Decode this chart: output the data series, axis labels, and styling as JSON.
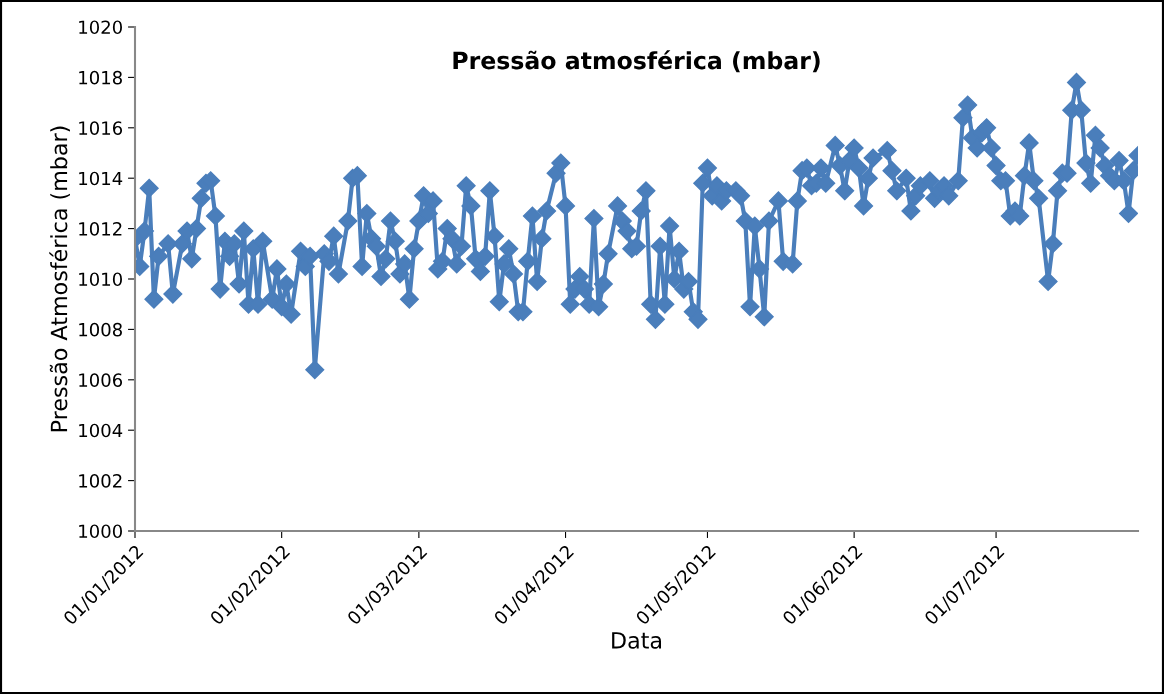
{
  "chart_data": {
    "type": "line",
    "title": "Pressão atmosférica (mbar)",
    "xlabel": "Data",
    "ylabel": "Pressão Atmosférica (mbar)",
    "x": [
      "2012-01-01",
      "2012-01-02",
      "2012-01-03",
      "2012-01-04",
      "2012-01-05",
      "2012-01-06",
      "2012-01-08",
      "2012-01-09",
      "2012-01-11",
      "2012-01-12",
      "2012-01-13",
      "2012-01-14",
      "2012-01-15",
      "2012-01-16",
      "2012-01-17",
      "2012-01-18",
      "2012-01-19",
      "2012-01-20",
      "2012-01-21",
      "2012-01-22",
      "2012-01-23",
      "2012-01-24",
      "2012-01-25",
      "2012-01-26",
      "2012-01-27",
      "2012-01-28",
      "2012-01-30",
      "2012-01-31",
      "2012-02-01",
      "2012-02-02",
      "2012-02-03",
      "2012-02-05",
      "2012-02-06",
      "2012-02-07",
      "2012-02-08",
      "2012-02-10",
      "2012-02-11",
      "2012-02-12",
      "2012-02-13",
      "2012-02-15",
      "2012-02-16",
      "2012-02-17",
      "2012-02-18",
      "2012-02-19",
      "2012-02-20",
      "2012-02-21",
      "2012-02-22",
      "2012-02-23",
      "2012-02-24",
      "2012-02-25",
      "2012-02-26",
      "2012-02-27",
      "2012-02-28",
      "2012-02-29",
      "2012-03-01",
      "2012-03-02",
      "2012-03-03",
      "2012-03-04",
      "2012-03-05",
      "2012-03-06",
      "2012-03-07",
      "2012-03-08",
      "2012-03-09",
      "2012-03-10",
      "2012-03-11",
      "2012-03-12",
      "2012-03-13",
      "2012-03-14",
      "2012-03-15",
      "2012-03-16",
      "2012-03-17",
      "2012-03-18",
      "2012-03-19",
      "2012-03-20",
      "2012-03-21",
      "2012-03-22",
      "2012-03-23",
      "2012-03-24",
      "2012-03-25",
      "2012-03-26",
      "2012-03-27",
      "2012-03-28",
      "2012-03-30",
      "2012-03-31",
      "2012-04-01",
      "2012-04-02",
      "2012-04-03",
      "2012-04-04",
      "2012-04-05",
      "2012-04-06",
      "2012-04-07",
      "2012-04-08",
      "2012-04-09",
      "2012-04-10",
      "2012-04-12",
      "2012-04-13",
      "2012-04-14",
      "2012-04-15",
      "2012-04-16",
      "2012-04-17",
      "2012-04-18",
      "2012-04-19",
      "2012-04-20",
      "2012-04-21",
      "2012-04-22",
      "2012-04-23",
      "2012-04-24",
      "2012-04-25",
      "2012-04-26",
      "2012-04-27",
      "2012-04-28",
      "2012-04-29",
      "2012-04-30",
      "2012-05-01",
      "2012-05-02",
      "2012-05-03",
      "2012-05-04",
      "2012-05-05",
      "2012-05-07",
      "2012-05-08",
      "2012-05-09",
      "2012-05-10",
      "2012-05-11",
      "2012-05-12",
      "2012-05-13",
      "2012-05-14",
      "2012-05-16",
      "2012-05-17",
      "2012-05-19",
      "2012-05-20",
      "2012-05-21",
      "2012-05-22",
      "2012-05-23",
      "2012-05-24",
      "2012-05-25",
      "2012-05-26",
      "2012-05-28",
      "2012-05-29",
      "2012-05-30",
      "2012-05-31",
      "2012-06-01",
      "2012-06-02",
      "2012-06-03",
      "2012-06-04",
      "2012-06-05",
      "2012-06-08",
      "2012-06-09",
      "2012-06-10",
      "2012-06-12",
      "2012-06-13",
      "2012-06-14",
      "2012-06-15",
      "2012-06-17",
      "2012-06-18",
      "2012-06-19",
      "2012-06-20",
      "2012-06-21",
      "2012-06-23",
      "2012-06-24",
      "2012-06-25",
      "2012-06-26",
      "2012-06-27",
      "2012-06-28",
      "2012-06-29",
      "2012-06-30",
      "2012-07-01",
      "2012-07-02",
      "2012-07-03",
      "2012-07-04",
      "2012-07-05",
      "2012-07-06",
      "2012-07-07",
      "2012-07-08",
      "2012-07-09",
      "2012-07-10",
      "2012-07-12",
      "2012-07-13",
      "2012-07-14",
      "2012-07-15",
      "2012-07-16",
      "2012-07-17",
      "2012-07-18",
      "2012-07-19",
      "2012-07-20",
      "2012-07-21",
      "2012-07-22",
      "2012-07-23",
      "2012-07-24",
      "2012-07-25",
      "2012-07-26",
      "2012-07-27",
      "2012-07-28",
      "2012-07-29",
      "2012-07-30",
      "2012-07-31"
    ],
    "series": [
      {
        "color": "#4a7ebb",
        "values": [
          1011.6,
          1010.5,
          1011.9,
          1013.6,
          1009.2,
          1010.9,
          1011.4,
          1009.4,
          1011.4,
          1011.9,
          1010.8,
          1012.0,
          1013.2,
          1013.8,
          1013.9,
          1012.5,
          1009.6,
          1011.5,
          1010.9,
          1011.4,
          1009.8,
          1011.9,
          1009.0,
          1011.2,
          1009.0,
          1011.5,
          1009.2,
          1010.4,
          1008.9,
          1009.8,
          1008.6,
          1011.1,
          1010.5,
          1010.9,
          1006.4,
          1011.0,
          1010.7,
          1011.7,
          1010.2,
          1012.3,
          1014.0,
          1014.1,
          1010.5,
          1012.6,
          1011.6,
          1011.3,
          1010.1,
          1010.8,
          1012.3,
          1011.5,
          1010.2,
          1010.6,
          1009.2,
          1011.2,
          1012.3,
          1013.3,
          1012.6,
          1013.1,
          1010.4,
          1010.7,
          1012.0,
          1011.6,
          1010.6,
          1011.3,
          1013.7,
          1012.9,
          1010.8,
          1010.3,
          1010.9,
          1013.5,
          1011.7,
          1009.1,
          1010.6,
          1011.2,
          1010.2,
          1008.7,
          1008.7,
          1010.7,
          1012.5,
          1009.9,
          1011.6,
          1012.7,
          1014.2,
          1014.6,
          1012.9,
          1009.0,
          1009.6,
          1010.1,
          1009.6,
          1009.0,
          1012.4,
          1008.9,
          1009.8,
          1011.0,
          1012.9,
          1012.3,
          1011.9,
          1011.2,
          1011.3,
          1012.7,
          1013.5,
          1009.0,
          1008.4,
          1011.3,
          1009.0,
          1012.1,
          1010.0,
          1011.1,
          1009.6,
          1009.9,
          1008.7,
          1008.4,
          1013.8,
          1014.4,
          1013.3,
          1013.7,
          1013.1,
          1013.5,
          1013.5,
          1013.3,
          1012.3,
          1008.9,
          1012.1,
          1010.4,
          1008.5,
          1012.3,
          1013.1,
          1010.7,
          1010.6,
          1013.1,
          1014.3,
          1014.4,
          1013.7,
          1013.8,
          1014.4,
          1013.8,
          1015.3,
          1014.5,
          1013.5,
          1014.7,
          1015.2,
          1014.4,
          1012.9,
          1014.0,
          1014.8,
          1015.1,
          1014.3,
          1013.5,
          1014.0,
          1012.7,
          1013.3,
          1013.7,
          1013.9,
          1013.2,
          1013.5,
          1013.7,
          1013.3,
          1013.9,
          1016.4,
          1016.9,
          1015.6,
          1015.2,
          1015.8,
          1016.0,
          1015.2,
          1014.5,
          1013.9,
          1013.9,
          1012.5,
          1012.7,
          1012.5,
          1014.1,
          1015.4,
          1013.9,
          1013.2,
          1009.9,
          1011.4,
          1013.5,
          1014.2,
          1014.2,
          1016.7,
          1017.8,
          1016.7,
          1014.6,
          1013.8,
          1015.7,
          1015.2,
          1014.5,
          1014.1,
          1013.9,
          1014.7,
          1013.9,
          1012.6,
          1014.3,
          1014.9
        ]
      }
    ],
    "xlim": [
      "2012-01-01",
      "2012-07-31"
    ],
    "xticks": [
      {
        "value": "2012-01-01",
        "label": "01/01/2012"
      },
      {
        "value": "2012-02-01",
        "label": "01/02/2012"
      },
      {
        "value": "2012-03-01",
        "label": "01/03/2012"
      },
      {
        "value": "2012-04-01",
        "label": "01/04/2012"
      },
      {
        "value": "2012-05-01",
        "label": "01/05/2012"
      },
      {
        "value": "2012-06-01",
        "label": "01/06/2012"
      },
      {
        "value": "2012-07-01",
        "label": "01/07/2012"
      }
    ],
    "ylim": [
      1000,
      1020
    ],
    "yticks": [
      1000,
      1002,
      1004,
      1006,
      1008,
      1010,
      1012,
      1014,
      1016,
      1018,
      1020
    ],
    "grid": false,
    "legend": false,
    "marker": "diamond",
    "line_style": "solid"
  }
}
